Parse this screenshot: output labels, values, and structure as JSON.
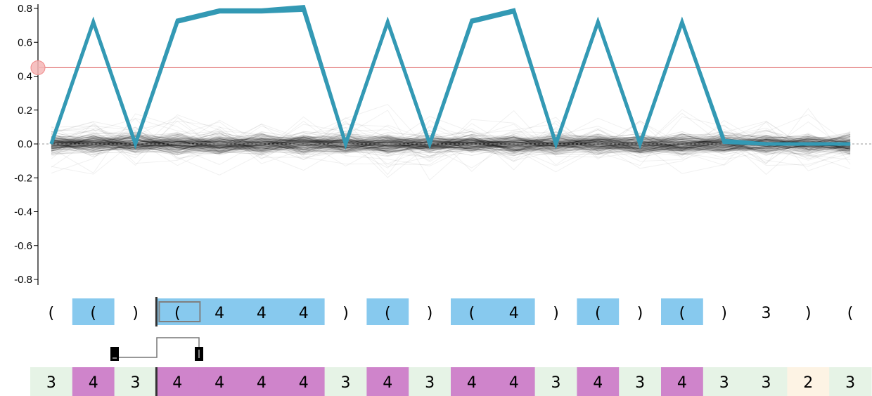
{
  "colors": {
    "highlight": "#3399b4",
    "threshold": "#e07070",
    "threshold_handle": "#f4b6b6",
    "background_line": "#000000",
    "token_highlight": "#87c9ee",
    "class4": "#cf84cb",
    "class3": "#e6f3e6",
    "class2": "#fdf3e4",
    "selection": "#808080"
  },
  "chart_data": {
    "type": "line",
    "title": "",
    "xlabel": "",
    "ylabel": "",
    "ylim": [
      -0.8,
      0.8
    ],
    "yticks": [
      "0.8",
      "0.6",
      "0.4",
      "0.2",
      "0.0",
      "-0.2",
      "-0.4",
      "-0.6",
      "-0.8"
    ],
    "ytick_values": [
      0.8,
      0.6,
      0.4,
      0.2,
      0.0,
      -0.2,
      -0.4,
      -0.6,
      -0.8
    ],
    "threshold": 0.45,
    "zero_line": 0.0,
    "x": [
      0,
      1,
      2,
      3,
      4,
      5,
      6,
      7,
      8,
      9,
      10,
      11,
      12,
      13,
      14,
      15,
      16,
      17,
      18,
      19
    ],
    "tokens": [
      "(",
      "(",
      ")",
      "(",
      "4",
      "4",
      "4",
      ")",
      "(",
      ")",
      "(",
      "4",
      ")",
      "(",
      ")",
      "(",
      ")",
      "3",
      ")",
      "("
    ],
    "token_highlighted": [
      false,
      true,
      false,
      true,
      true,
      true,
      true,
      false,
      true,
      false,
      true,
      true,
      false,
      true,
      false,
      true,
      false,
      false,
      false,
      false
    ],
    "classes": [
      "3",
      "4",
      "3",
      "4",
      "4",
      "4",
      "4",
      "3",
      "4",
      "3",
      "4",
      "4",
      "3",
      "4",
      "3",
      "4",
      "3",
      "3",
      "2",
      "3"
    ],
    "series": [
      {
        "values": [
          0.0,
          0.72,
          0.0,
          0.73,
          0.79,
          0.79,
          0.81,
          0.0,
          0.72,
          0.0,
          0.73,
          0.79,
          0.0,
          0.72,
          0.0,
          0.72,
          0.01,
          0.0,
          0.0,
          0.0
        ]
      },
      {
        "values": [
          0.0,
          0.72,
          0.0,
          0.72,
          0.78,
          0.78,
          0.79,
          0.0,
          0.72,
          0.0,
          0.72,
          0.78,
          0.0,
          0.72,
          0.0,
          0.72,
          0.02,
          0.0,
          0.0,
          0.0
        ]
      }
    ],
    "selection_index": 3,
    "divider_after_index": 2
  }
}
